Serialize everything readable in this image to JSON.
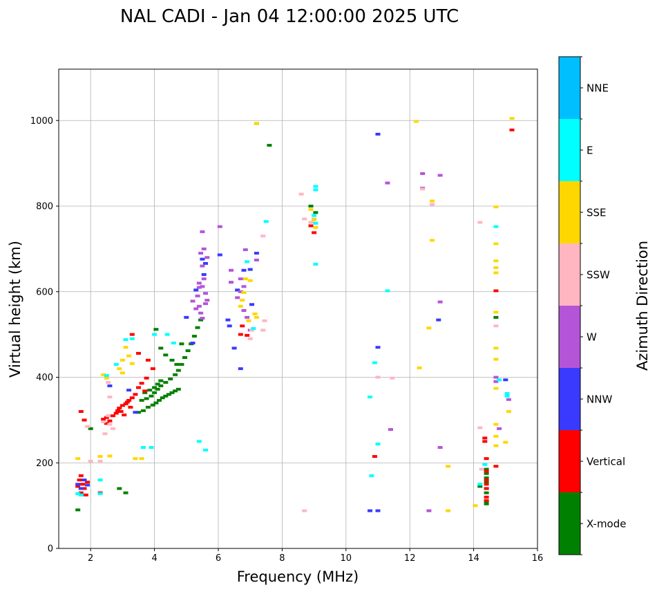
{
  "chart_data": {
    "type": "scatter",
    "title": "NAL CADI - Jan 04 12:00:00 2025 UTC",
    "xlabel": "Frequency (MHz)",
    "ylabel": "Virtual height (km)",
    "xlim": [
      1,
      16
    ],
    "ylim": [
      0,
      1120
    ],
    "xticks": [
      "2",
      "4",
      "6",
      "8",
      "10",
      "12",
      "14",
      "16"
    ],
    "yticks": [
      "0",
      "200",
      "400",
      "600",
      "800",
      "1000"
    ],
    "grid": true,
    "colorbar": {
      "title": "Azimuth Direction",
      "categories": [
        "X-mode",
        "Vertical",
        "NNW",
        "W",
        "SSW",
        "SSE",
        "E",
        "NNE"
      ],
      "colors": [
        "#008000",
        "#ff0000",
        "#3a3aff",
        "#b455d8",
        "#ffb6c1",
        "#ffd700",
        "#00ffff",
        "#00bfff"
      ]
    },
    "series": [
      {
        "name": "X-mode",
        "points": [
          [
            3.5,
            318
          ],
          [
            3.65,
            322
          ],
          [
            3.8,
            330
          ],
          [
            3.95,
            335
          ],
          [
            4.05,
            340
          ],
          [
            4.15,
            346
          ],
          [
            4.25,
            352
          ],
          [
            4.35,
            356
          ],
          [
            4.45,
            360
          ],
          [
            4.55,
            364
          ],
          [
            4.65,
            368
          ],
          [
            4.75,
            372
          ],
          [
            3.6,
            346
          ],
          [
            3.75,
            350
          ],
          [
            3.9,
            356
          ],
          [
            4.0,
            364
          ],
          [
            4.1,
            372
          ],
          [
            4.2,
            380
          ],
          [
            4.35,
            388
          ],
          [
            4.5,
            396
          ],
          [
            4.65,
            406
          ],
          [
            4.75,
            416
          ],
          [
            4.85,
            430
          ],
          [
            4.95,
            446
          ],
          [
            5.05,
            462
          ],
          [
            5.15,
            478
          ],
          [
            5.25,
            496
          ],
          [
            5.35,
            516
          ],
          [
            5.45,
            534
          ],
          [
            3.7,
            364
          ],
          [
            3.85,
            370
          ],
          [
            4.0,
            376
          ],
          [
            4.1,
            384
          ],
          [
            4.2,
            392
          ],
          [
            4.05,
            512
          ],
          [
            4.2,
            468
          ],
          [
            4.35,
            452
          ],
          [
            4.55,
            440
          ],
          [
            4.7,
            430
          ],
          [
            4.85,
            478
          ],
          [
            1.6,
            90
          ],
          [
            2.0,
            280
          ],
          [
            7.6,
            942
          ],
          [
            7.2,
            993
          ],
          [
            8.9,
            800
          ],
          [
            9.05,
            785
          ],
          [
            14.7,
            540
          ],
          [
            14.4,
            185
          ],
          [
            14.4,
            175
          ],
          [
            14.4,
            165
          ],
          [
            14.4,
            155
          ],
          [
            14.4,
            140
          ],
          [
            14.4,
            130
          ],
          [
            14.4,
            110
          ],
          [
            14.4,
            104
          ],
          [
            14.2,
            145
          ],
          [
            2.9,
            140
          ],
          [
            3.1,
            130
          ]
        ]
      },
      {
        "name": "Vertical",
        "points": [
          [
            2.4,
            302
          ],
          [
            2.5,
            306
          ],
          [
            2.6,
            298
          ],
          [
            2.5,
            292
          ],
          [
            2.7,
            310
          ],
          [
            2.8,
            316
          ],
          [
            2.85,
            322
          ],
          [
            2.9,
            328
          ],
          [
            2.95,
            320
          ],
          [
            3.0,
            334
          ],
          [
            3.05,
            312
          ],
          [
            3.1,
            338
          ],
          [
            3.15,
            342
          ],
          [
            3.2,
            346
          ],
          [
            3.25,
            330
          ],
          [
            3.3,
            352
          ],
          [
            3.4,
            360
          ],
          [
            3.5,
            376
          ],
          [
            3.6,
            386
          ],
          [
            3.75,
            398
          ],
          [
            3.8,
            440
          ],
          [
            3.95,
            420
          ],
          [
            3.3,
            500
          ],
          [
            3.5,
            456
          ],
          [
            3.7,
            368
          ],
          [
            1.7,
            320
          ],
          [
            1.8,
            300
          ],
          [
            1.7,
            170
          ],
          [
            1.65,
            160
          ],
          [
            1.75,
            150
          ],
          [
            1.8,
            140
          ],
          [
            1.7,
            130
          ],
          [
            1.85,
            125
          ],
          [
            1.6,
            145
          ],
          [
            1.9,
            155
          ],
          [
            2.3,
            130
          ],
          [
            6.7,
            500
          ],
          [
            6.9,
            498
          ],
          [
            6.75,
            520
          ],
          [
            9.0,
            738
          ],
          [
            8.9,
            754
          ],
          [
            14.7,
            602
          ],
          [
            15.2,
            978
          ],
          [
            14.35,
            258
          ],
          [
            14.35,
            250
          ],
          [
            14.4,
            210
          ],
          [
            14.4,
            180
          ],
          [
            14.4,
            160
          ],
          [
            14.4,
            150
          ],
          [
            14.4,
            140
          ],
          [
            14.4,
            120
          ],
          [
            14.4,
            112
          ],
          [
            10.9,
            215
          ],
          [
            14.7,
            192
          ]
        ]
      },
      {
        "name": "NNW",
        "points": [
          [
            1.6,
            150
          ],
          [
            1.7,
            140
          ],
          [
            1.8,
            160
          ],
          [
            1.9,
            148
          ],
          [
            2.6,
            380
          ],
          [
            3.2,
            370
          ],
          [
            3.4,
            318
          ],
          [
            5.0,
            540
          ],
          [
            5.2,
            480
          ],
          [
            5.3,
            604
          ],
          [
            5.5,
            676
          ],
          [
            5.55,
            640
          ],
          [
            5.6,
            666
          ],
          [
            6.05,
            686
          ],
          [
            6.3,
            534
          ],
          [
            6.35,
            520
          ],
          [
            6.5,
            468
          ],
          [
            6.6,
            604
          ],
          [
            6.7,
            420
          ],
          [
            6.8,
            650
          ],
          [
            7.0,
            652
          ],
          [
            7.05,
            570
          ],
          [
            7.2,
            690
          ],
          [
            11.0,
            968
          ],
          [
            11.0,
            470
          ],
          [
            10.75,
            88
          ],
          [
            11.0,
            88
          ],
          [
            12.9,
            534
          ],
          [
            15.0,
            394
          ]
        ]
      },
      {
        "name": "W",
        "points": [
          [
            5.2,
            578
          ],
          [
            5.3,
            560
          ],
          [
            5.35,
            590
          ],
          [
            5.4,
            566
          ],
          [
            5.45,
            550
          ],
          [
            5.5,
            612
          ],
          [
            5.55,
            630
          ],
          [
            5.6,
            596
          ],
          [
            5.65,
            580
          ],
          [
            5.4,
            620
          ],
          [
            5.5,
            660
          ],
          [
            5.6,
            572
          ],
          [
            5.45,
            690
          ],
          [
            5.55,
            700
          ],
          [
            5.65,
            680
          ],
          [
            5.5,
            740
          ],
          [
            5.4,
            610
          ],
          [
            5.5,
            538
          ],
          [
            6.05,
            752
          ],
          [
            6.4,
            622
          ],
          [
            6.6,
            586
          ],
          [
            6.7,
            600
          ],
          [
            6.8,
            556
          ],
          [
            6.9,
            540
          ],
          [
            6.85,
            698
          ],
          [
            6.7,
            630
          ],
          [
            6.8,
            612
          ],
          [
            7.0,
            510
          ],
          [
            7.2,
            674
          ],
          [
            6.4,
            650
          ],
          [
            12.4,
            876
          ],
          [
            12.4,
            842
          ],
          [
            12.95,
            872
          ],
          [
            11.3,
            854
          ],
          [
            12.95,
            576
          ],
          [
            12.95,
            236
          ],
          [
            12.6,
            88
          ],
          [
            14.7,
            400
          ],
          [
            14.7,
            390
          ],
          [
            14.8,
            280
          ],
          [
            15.1,
            348
          ],
          [
            11.4,
            278
          ]
        ]
      },
      {
        "name": "SSW",
        "points": [
          [
            2.6,
            290
          ],
          [
            2.7,
            280
          ],
          [
            2.4,
            296
          ],
          [
            2.55,
            310
          ],
          [
            2.45,
            268
          ],
          [
            2.55,
            388
          ],
          [
            2.6,
            354
          ],
          [
            2.0,
            204
          ],
          [
            1.9,
            285
          ],
          [
            2.3,
            204
          ],
          [
            8.6,
            828
          ],
          [
            8.7,
            770
          ],
          [
            8.9,
            762
          ],
          [
            9.0,
            770
          ],
          [
            7.0,
            490
          ],
          [
            7.05,
            510
          ],
          [
            7.4,
            510
          ],
          [
            7.45,
            532
          ],
          [
            7.4,
            730
          ],
          [
            11.0,
            400
          ],
          [
            11.45,
            398
          ],
          [
            12.7,
            804
          ],
          [
            14.2,
            762
          ],
          [
            14.2,
            282
          ],
          [
            14.25,
            185
          ],
          [
            8.7,
            88
          ],
          [
            12.4,
            840
          ],
          [
            14.7,
            520
          ]
        ]
      },
      {
        "name": "SSE",
        "points": [
          [
            2.4,
            406
          ],
          [
            2.5,
            398
          ],
          [
            2.9,
            420
          ],
          [
            3.0,
            440
          ],
          [
            3.1,
            470
          ],
          [
            3.0,
            410
          ],
          [
            3.2,
            450
          ],
          [
            3.3,
            432
          ],
          [
            2.6,
            216
          ],
          [
            3.4,
            210
          ],
          [
            3.6,
            210
          ],
          [
            1.6,
            210
          ],
          [
            2.3,
            215
          ],
          [
            3.9,
            236
          ],
          [
            6.7,
            566
          ],
          [
            6.75,
            580
          ],
          [
            6.8,
            598
          ],
          [
            6.85,
            630
          ],
          [
            7.0,
            626
          ],
          [
            7.15,
            548
          ],
          [
            7.2,
            540
          ],
          [
            6.95,
            532
          ],
          [
            8.9,
            792
          ],
          [
            9.0,
            768
          ],
          [
            9.05,
            750
          ],
          [
            7.2,
            993
          ],
          [
            12.2,
            998
          ],
          [
            12.3,
            422
          ],
          [
            12.7,
            812
          ],
          [
            12.7,
            720
          ],
          [
            12.6,
            515
          ],
          [
            13.2,
            192
          ],
          [
            13.2,
            88
          ],
          [
            14.05,
            100
          ],
          [
            14.7,
            798
          ],
          [
            14.7,
            712
          ],
          [
            14.7,
            672
          ],
          [
            14.7,
            656
          ],
          [
            14.7,
            644
          ],
          [
            14.7,
            552
          ],
          [
            14.7,
            468
          ],
          [
            14.7,
            442
          ],
          [
            14.7,
            374
          ],
          [
            14.7,
            290
          ],
          [
            14.7,
            262
          ],
          [
            15.0,
            248
          ],
          [
            15.1,
            320
          ],
          [
            15.2,
            1005
          ],
          [
            14.7,
            240
          ]
        ]
      },
      {
        "name": "E",
        "points": [
          [
            2.3,
            128
          ],
          [
            1.6,
            128
          ],
          [
            1.7,
            125
          ],
          [
            2.3,
            160
          ],
          [
            2.5,
            404
          ],
          [
            2.8,
            430
          ],
          [
            3.1,
            488
          ],
          [
            3.3,
            490
          ],
          [
            3.65,
            236
          ],
          [
            3.9,
            236
          ],
          [
            5.6,
            230
          ],
          [
            5.4,
            250
          ],
          [
            4.0,
            500
          ],
          [
            4.4,
            500
          ],
          [
            4.6,
            480
          ],
          [
            9.05,
            846
          ],
          [
            9.05,
            838
          ],
          [
            9.05,
            664
          ],
          [
            9.0,
            778
          ],
          [
            9.05,
            760
          ],
          [
            7.5,
            764
          ],
          [
            7.1,
            514
          ],
          [
            10.9,
            434
          ],
          [
            10.75,
            354
          ],
          [
            10.8,
            170
          ],
          [
            11.0,
            244
          ],
          [
            11.3,
            602
          ],
          [
            14.7,
            752
          ],
          [
            14.8,
            394
          ],
          [
            15.05,
            356
          ],
          [
            15.05,
            362
          ],
          [
            14.35,
            196
          ],
          [
            14.2,
            150
          ],
          [
            6.9,
            670
          ]
        ]
      }
    ]
  }
}
